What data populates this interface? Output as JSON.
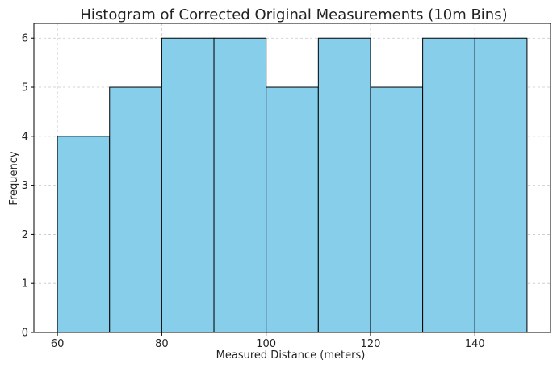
{
  "chart_data": {
    "type": "bar",
    "title": "Histogram of Corrected Original Measurements (10m Bins)",
    "xlabel": "Measured Distance (meters)",
    "ylabel": "Frequency",
    "bins": [
      {
        "start": 60,
        "end": 70,
        "count": 4
      },
      {
        "start": 70,
        "end": 80,
        "count": 5
      },
      {
        "start": 80,
        "end": 90,
        "count": 6
      },
      {
        "start": 90,
        "end": 100,
        "count": 6
      },
      {
        "start": 100,
        "end": 110,
        "count": 5
      },
      {
        "start": 110,
        "end": 120,
        "count": 6
      },
      {
        "start": 120,
        "end": 130,
        "count": 5
      },
      {
        "start": 130,
        "end": 140,
        "count": 6
      },
      {
        "start": 140,
        "end": 150,
        "count": 6
      }
    ],
    "xlim": [
      55.5,
      154.5
    ],
    "ylim": [
      0,
      6.3
    ],
    "xticks": [
      60,
      80,
      100,
      120,
      140
    ],
    "yticks": [
      0,
      1,
      2,
      3,
      4,
      5,
      6
    ],
    "grid": true,
    "bar_color": "#87CEEB",
    "edge_color": "#000000"
  }
}
